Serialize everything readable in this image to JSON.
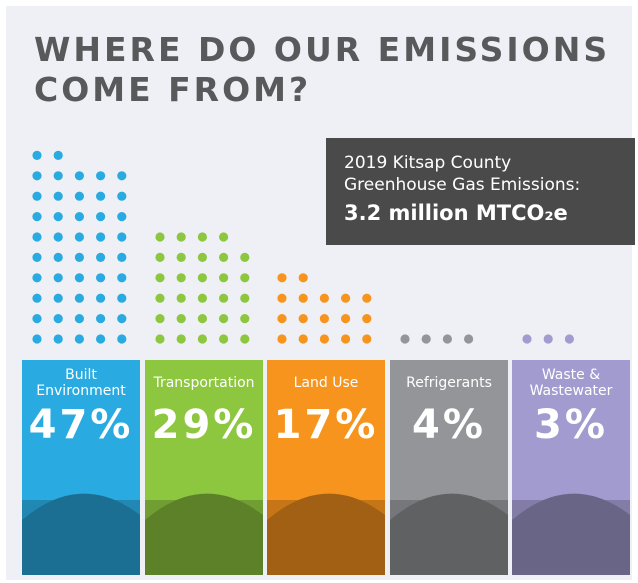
{
  "chart_data": {
    "type": "dots",
    "title": [
      "WHERE DO OUR EMISSIONS",
      "COME FROM?"
    ],
    "subtitle": [
      "2019 Kitsap County",
      "Greenhouse Gas Emissions:"
    ],
    "annotation": "3.2 million MTCO₂e",
    "categories": [
      "Built Environment",
      "Transportation",
      "Land Use",
      "Refrigerants",
      "Waste & Wastewater"
    ],
    "values": [
      47,
      29,
      17,
      4,
      3
    ],
    "value_labels": [
      "47%",
      "29%",
      "17%",
      "4%",
      "3%"
    ],
    "colors": [
      "#29aae1",
      "#8dc63f",
      "#f7941d",
      "#939598",
      "#a29bcf"
    ]
  }
}
